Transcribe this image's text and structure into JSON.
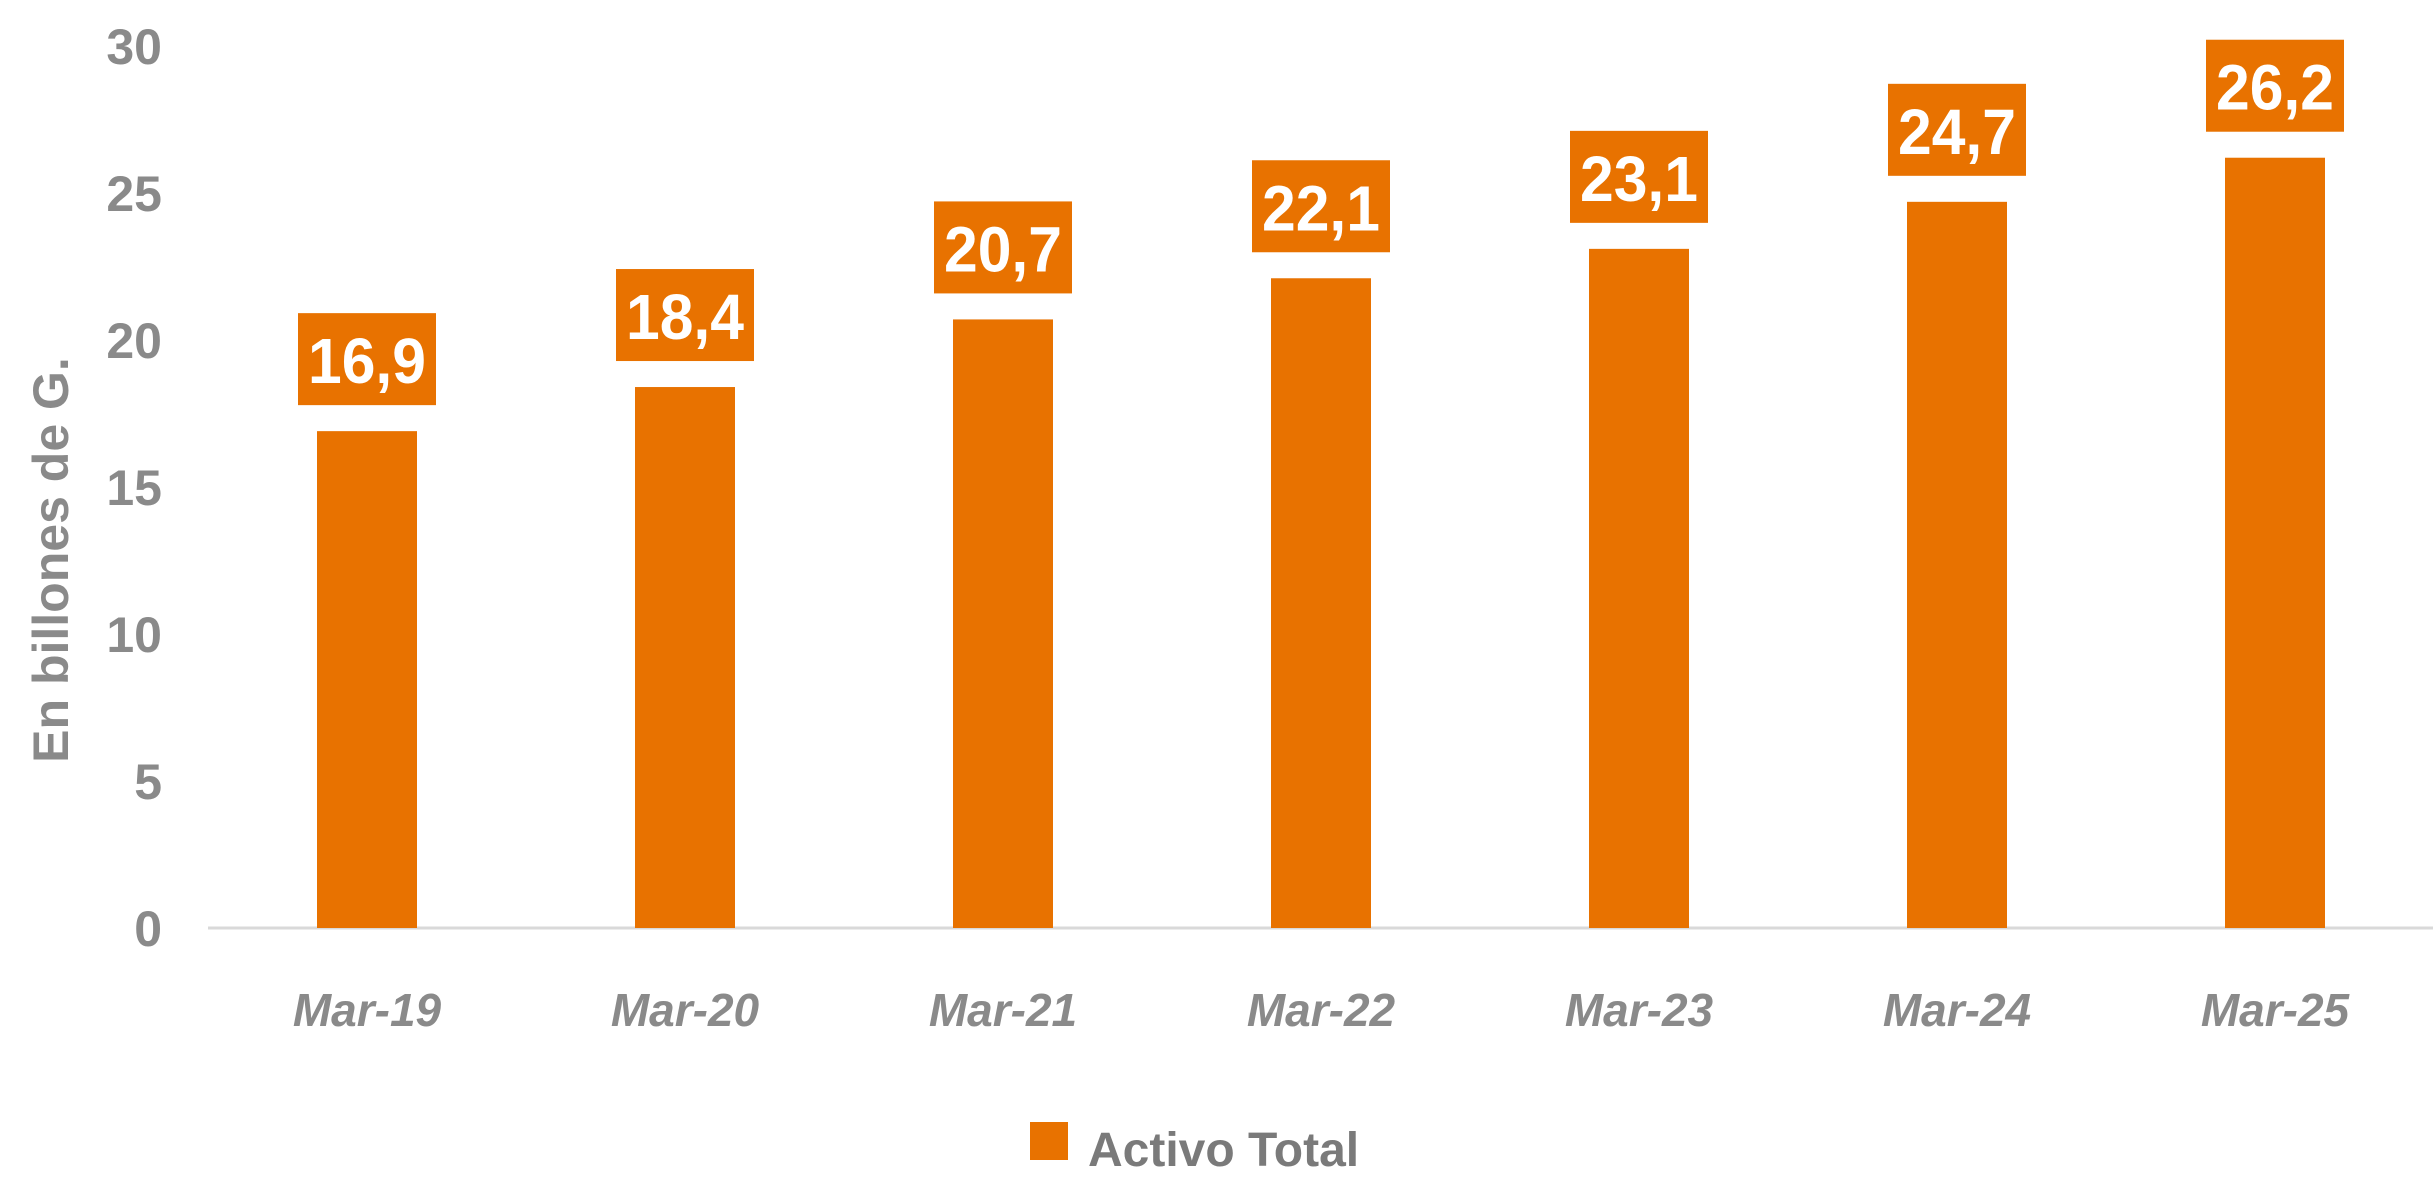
{
  "chart_data": {
    "type": "bar",
    "categories": [
      "Mar-19",
      "Mar-20",
      "Mar-21",
      "Mar-22",
      "Mar-23",
      "Mar-24",
      "Mar-25"
    ],
    "series": [
      {
        "name": "Activo Total",
        "values": [
          16.9,
          18.4,
          20.7,
          22.1,
          23.1,
          24.7,
          26.2
        ],
        "data_labels": [
          "16,9",
          "18,4",
          "20,7",
          "22,1",
          "23,1",
          "24,7",
          "26,2"
        ]
      }
    ],
    "ylabel": "En billones de G.",
    "ylim": [
      0,
      30
    ],
    "yticks": [
      0,
      5,
      10,
      15,
      20,
      25,
      30
    ],
    "grid": false,
    "legend_position": "bottom",
    "colors": {
      "bar": "#E87200",
      "axis_text": "#8a8a8a",
      "baseline": "#d9d9d9",
      "label_text": "#ffffff"
    }
  }
}
